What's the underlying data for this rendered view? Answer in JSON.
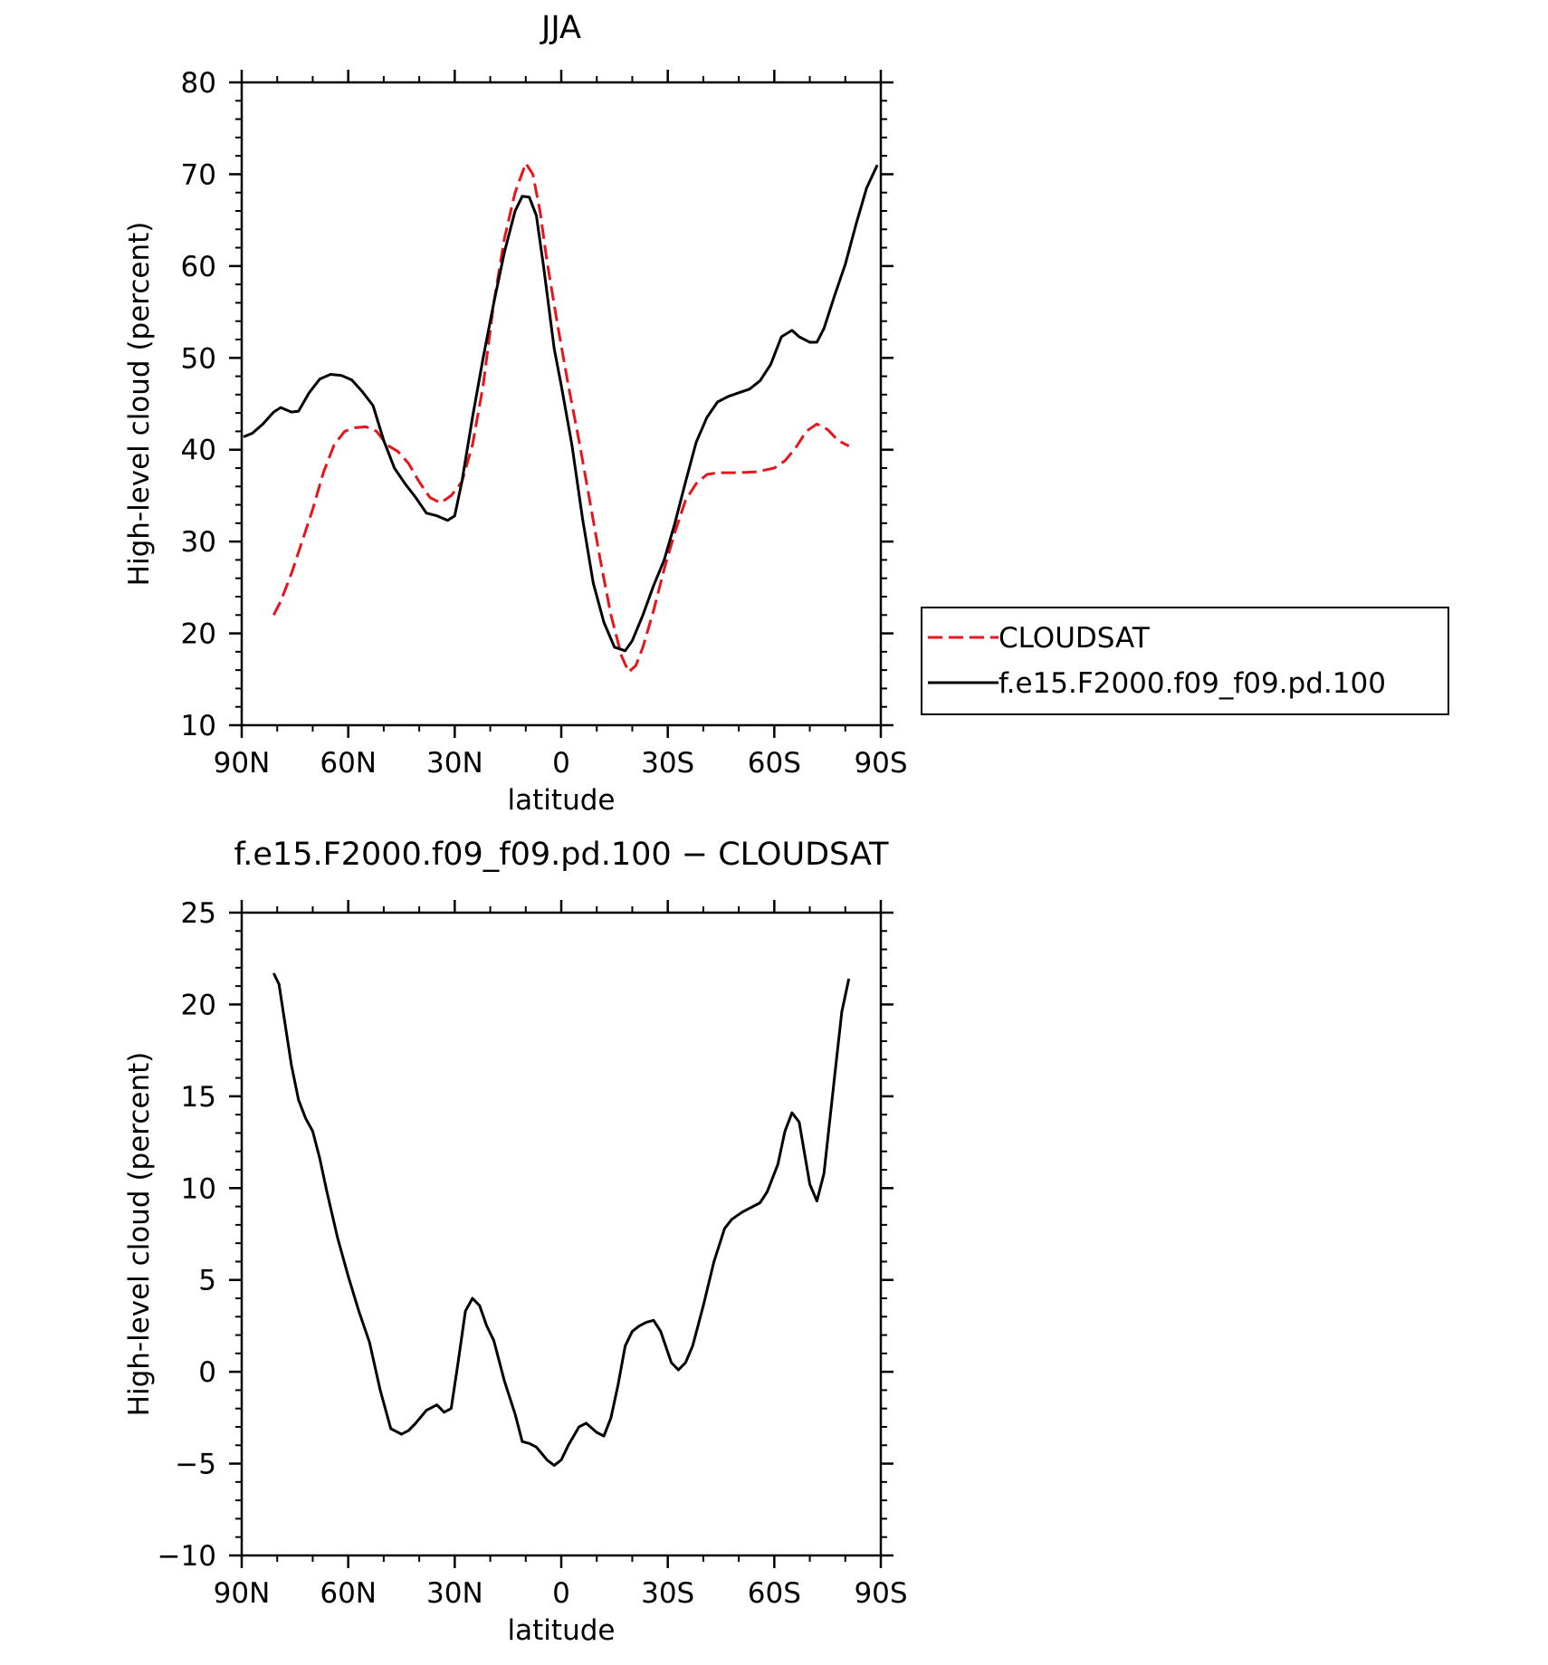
{
  "chart_data": [
    {
      "type": "line",
      "title": "JJA",
      "xlabel": "latitude",
      "ylabel": "High-level cloud (percent)",
      "xlim": [
        90,
        -90
      ],
      "ylim": [
        10,
        80
      ],
      "x_ticks": [
        90,
        60,
        30,
        0,
        -30,
        -60,
        -90
      ],
      "x_tick_labels": [
        "90N",
        "60N",
        "30N",
        "0",
        "30S",
        "60S",
        "90S"
      ],
      "y_ticks": [
        10,
        20,
        30,
        40,
        50,
        60,
        70,
        80
      ],
      "y_tick_labels": [
        "10",
        "20",
        "30",
        "40",
        "50",
        "60",
        "70",
        "80"
      ],
      "legend_position": "right",
      "series": [
        {
          "name": "CLOUDSAT",
          "color": "#e8141c",
          "dash": true,
          "x": [
            81,
            79,
            76,
            73,
            70,
            67,
            64,
            61,
            58,
            55,
            52,
            49,
            46,
            43,
            40,
            37,
            34,
            31,
            28,
            25,
            22,
            19,
            16,
            13,
            10,
            8,
            6,
            4,
            1,
            -2,
            -5,
            -8,
            -11,
            -14,
            -17,
            -19,
            -21,
            -23,
            -26,
            -29,
            -32,
            -35,
            -38,
            -41,
            -44,
            -47,
            -50,
            -55,
            -60,
            -63,
            -66,
            -69,
            -72,
            -75,
            -78,
            -81
          ],
          "y": [
            22,
            23.5,
            26.5,
            30,
            33.5,
            37.5,
            40.5,
            42,
            42.4,
            42.5,
            42,
            40.5,
            39.8,
            38.5,
            36.5,
            34.8,
            34.2,
            35,
            36.5,
            40.5,
            47,
            56,
            63,
            68,
            71.2,
            70,
            66,
            60.5,
            53.5,
            47,
            41,
            34.5,
            28,
            22,
            17.5,
            15.8,
            16.5,
            18.5,
            22.5,
            27,
            31,
            34.5,
            36.3,
            37.3,
            37.5,
            37.5,
            37.5,
            37.6,
            38,
            38.8,
            40.2,
            42,
            42.8,
            42.2,
            41,
            40.4
          ]
        },
        {
          "name": "f.e15.F2000.f09_f09.pd.100",
          "color": "#000000",
          "dash": false,
          "x": [
            89.5,
            87,
            84,
            81,
            79,
            76,
            74,
            71,
            68,
            65,
            62,
            59,
            56,
            53,
            50,
            47,
            44,
            41,
            38,
            35,
            32,
            30,
            28,
            25,
            22,
            19,
            16,
            13,
            11,
            9,
            7,
            5,
            2,
            0,
            -3,
            -6,
            -9,
            -12,
            -15,
            -18,
            -20,
            -23,
            -26,
            -29,
            -32,
            -35,
            -38,
            -41,
            -44,
            -47,
            -50,
            -53,
            -56,
            -59,
            -62,
            -65,
            -67,
            -70,
            -72,
            -74,
            -77,
            -80,
            -83,
            -86,
            -89
          ],
          "y": [
            41.4,
            41.8,
            42.8,
            44.1,
            44.6,
            44.1,
            44.2,
            46.2,
            47.7,
            48.2,
            48.1,
            47.6,
            46.3,
            44.8,
            41,
            38,
            36.3,
            34.8,
            33.1,
            32.8,
            32.3,
            32.8,
            36.5,
            43.5,
            50,
            56,
            61.5,
            66,
            67.6,
            67.5,
            65.5,
            60,
            51,
            47,
            40.5,
            32.5,
            25.5,
            21.2,
            18.5,
            18.1,
            19.2,
            22,
            25.2,
            28,
            32,
            36.5,
            40.8,
            43.5,
            45.2,
            45.8,
            46.2,
            46.6,
            47.5,
            49.3,
            52.3,
            53,
            52.3,
            51.7,
            51.7,
            53.2,
            56.8,
            60.2,
            64.5,
            68.5,
            71
          ]
        }
      ]
    },
    {
      "type": "line",
      "title": "f.e15.F2000.f09_f09.pd.100 − CLOUDSAT",
      "xlabel": "latitude",
      "ylabel": "High-level cloud (percent)",
      "xlim": [
        90,
        -90
      ],
      "ylim": [
        -10,
        25
      ],
      "x_ticks": [
        90,
        60,
        30,
        0,
        -30,
        -60,
        -90
      ],
      "x_tick_labels": [
        "90N",
        "60N",
        "30N",
        "0",
        "30S",
        "60S",
        "90S"
      ],
      "y_ticks": [
        -10,
        -5,
        0,
        5,
        10,
        15,
        20,
        25
      ],
      "y_tick_labels": [
        "−10",
        "−5",
        "0",
        "5",
        "10",
        "15",
        "20",
        "25"
      ],
      "series": [
        {
          "color": "#000000",
          "dash": false,
          "x": [
            81,
            79.5,
            78,
            76,
            74,
            72,
            70,
            68,
            66,
            63,
            60,
            57,
            54,
            51,
            48,
            45,
            43,
            41,
            38,
            35,
            33,
            31,
            29,
            27,
            25,
            23,
            21,
            19,
            16,
            13,
            11,
            9,
            7,
            4,
            2,
            0,
            -2,
            -5,
            -7,
            -10,
            -12,
            -14,
            -16,
            -18,
            -20,
            -22,
            -24,
            -26,
            -28,
            -31,
            -33,
            -35,
            -37,
            -40,
            -43,
            -46,
            -48,
            -51,
            -54,
            -56,
            -58,
            -61,
            -63,
            -65,
            -67,
            -70,
            -72,
            -74,
            -77,
            -79,
            -81
          ],
          "y": [
            21.7,
            21.1,
            19.2,
            16.7,
            14.8,
            13.8,
            13.1,
            11.6,
            9.8,
            7.3,
            5.2,
            3.3,
            1.6,
            -1,
            -3.1,
            -3.4,
            -3.2,
            -2.8,
            -2.1,
            -1.8,
            -2.2,
            -2,
            0.6,
            3.3,
            4,
            3.6,
            2.5,
            1.7,
            -0.5,
            -2.3,
            -3.8,
            -3.9,
            -4.1,
            -4.8,
            -5.1,
            -4.8,
            -4,
            -3,
            -2.8,
            -3.3,
            -3.5,
            -2.5,
            -0.7,
            1.4,
            2.2,
            2.5,
            2.7,
            2.8,
            2.2,
            0.5,
            0.1,
            0.5,
            1.4,
            3.6,
            6,
            7.8,
            8.3,
            8.7,
            9,
            9.2,
            9.8,
            11.3,
            13.1,
            14.1,
            13.6,
            10.2,
            9.3,
            10.8,
            16.1,
            19.6,
            21.4
          ]
        }
      ]
    }
  ]
}
